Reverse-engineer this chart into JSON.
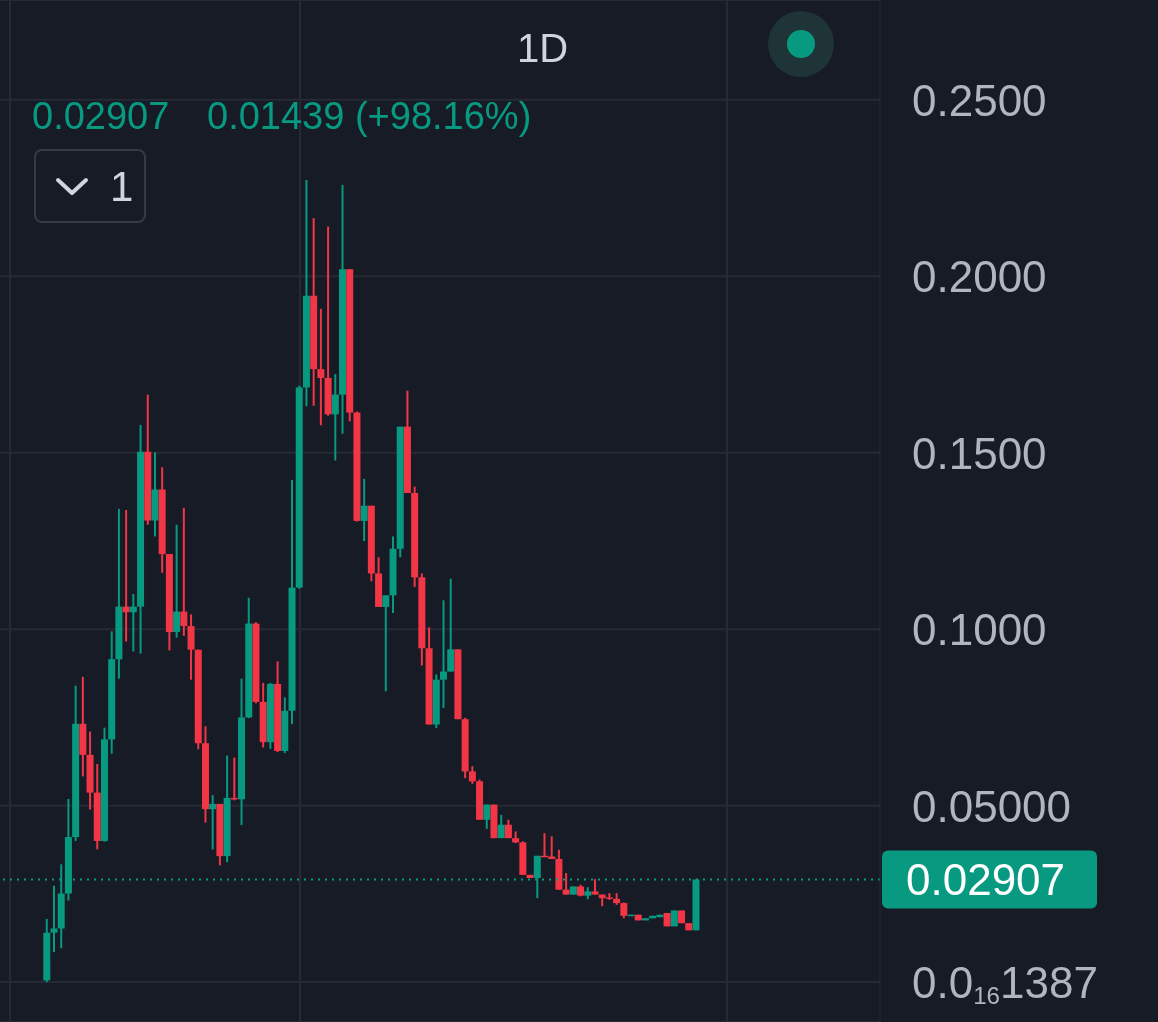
{
  "chart_data": {
    "type": "candlestick",
    "title": "1D",
    "annotations": [
      "0.02907",
      "0.01439 (+98.16%)",
      "1"
    ],
    "categories": [
      null,
      null,
      null,
      null,
      null,
      null,
      null,
      null,
      null,
      null,
      null,
      null,
      null,
      null,
      null,
      null,
      null,
      null,
      null,
      null,
      null,
      null,
      null,
      null,
      null,
      null,
      null,
      null,
      null,
      null,
      null,
      null,
      null,
      null,
      null,
      null,
      null,
      null,
      null,
      null,
      null,
      null,
      null,
      null,
      null,
      null,
      null,
      null,
      null,
      null,
      null,
      null,
      null,
      null,
      null,
      null,
      null,
      null,
      null,
      null,
      null,
      null,
      null,
      null,
      null,
      null,
      null,
      null,
      null,
      null,
      null,
      null,
      null,
      null,
      null,
      null,
      null,
      null,
      null,
      null,
      null,
      null,
      null,
      null,
      null,
      null,
      null,
      null,
      null,
      null,
      null,
      null,
      null,
      null,
      null,
      null,
      null,
      null,
      null,
      null,
      null,
      null,
      null,
      null,
      null,
      null,
      null,
      null,
      null,
      null,
      null,
      null,
      null,
      null,
      null,
      null,
      null,
      null,
      null,
      null,
      null,
      null
    ],
    "ohlc": [
      null,
      null,
      null,
      null,
      null,
      null,
      [
        0.0005,
        0.0179,
        0,
        0.014
      ],
      [
        0.014,
        0.0273,
        0.0085,
        0.0152
      ],
      [
        0.0152,
        0.0334,
        0.0096,
        0.0251
      ],
      [
        0.0251,
        0.0519,
        0.0231,
        0.0411
      ],
      [
        0.0411,
        0.084,
        0.04,
        0.0732
      ],
      [
        0.0732,
        0.0865,
        0.0583,
        0.0644
      ],
      [
        0.0644,
        0.071,
        0.0489,
        0.0537
      ],
      [
        0.0537,
        0.0618,
        0.0376,
        0.04
      ],
      [
        0.04,
        0.0721,
        0.0398,
        0.0688
      ],
      [
        0.0688,
        0.0994,
        0.0647,
        0.0915
      ],
      [
        0.0915,
        0.1341,
        0.086,
        0.1064
      ],
      [
        0.1064,
        0.1338,
        0.0965,
        0.1048
      ],
      [
        0.1048,
        0.11,
        0.0937,
        0.1064
      ],
      [
        0.1064,
        0.1579,
        0.0931,
        0.1503
      ],
      [
        0.1503,
        0.1665,
        0.1296,
        0.1308
      ],
      [
        0.1308,
        0.1501,
        0.1263,
        0.1396
      ],
      [
        0.1396,
        0.1459,
        0.116,
        0.1213
      ],
      [
        0.1213,
        0.1213,
        0.094,
        0.0992
      ],
      [
        0.0992,
        0.1296,
        0.0976,
        0.105
      ],
      [
        0.105,
        0.1344,
        0.0981,
        0.1009
      ],
      [
        0.1009,
        0.1042,
        0.0857,
        0.0942
      ],
      [
        0.0942,
        0.0942,
        0.066,
        0.0677
      ],
      [
        0.0677,
        0.0725,
        0.0452,
        0.049
      ],
      [
        0.049,
        0.053,
        0.0376,
        0.0505
      ],
      [
        0.0505,
        0.0505,
        0.0331,
        0.0357
      ],
      [
        0.0357,
        0.0642,
        0.034,
        0.0522
      ],
      [
        0.0522,
        0.0636,
        0.0515,
        0.0518
      ],
      [
        0.0518,
        0.086,
        0.0445,
        0.075
      ],
      [
        0.075,
        0.1089,
        0.0748,
        0.1016
      ],
      [
        0.1016,
        0.102,
        0.079,
        0.0794
      ],
      [
        0.0794,
        0.0848,
        0.0665,
        0.068
      ],
      [
        0.068,
        0.0848,
        0.0661,
        0.0845
      ],
      [
        0.0845,
        0.0909,
        0.0652,
        0.0655
      ],
      [
        0.0655,
        0.0807,
        0.0649,
        0.0769
      ],
      [
        0.0769,
        0.1423,
        0.0731,
        0.1118
      ],
      [
        0.1118,
        0.169,
        0.1115,
        0.1685
      ],
      [
        0.1685,
        0.2273,
        0.1632,
        0.1945
      ],
      [
        0.1945,
        0.2165,
        0.1633,
        0.1737
      ],
      [
        0.1737,
        0.1908,
        0.1578,
        0.1712
      ],
      [
        0.1712,
        0.2141,
        0.1605,
        0.1609
      ],
      [
        0.1609,
        0.1723,
        0.1478,
        0.1665
      ],
      [
        0.1665,
        0.2259,
        0.1554,
        0.202
      ],
      [
        0.202,
        0.202,
        0.1589,
        0.1614
      ],
      [
        0.1614,
        0.1617,
        0.1305,
        0.1307
      ],
      [
        0.1307,
        0.1426,
        0.125,
        0.135
      ],
      [
        0.135,
        0.135,
        0.1136,
        0.1158
      ],
      [
        0.1158,
        0.1204,
        0.1063,
        0.1063
      ],
      [
        0.1063,
        0.1096,
        0.0824,
        0.1096
      ],
      [
        0.1096,
        0.1263,
        0.1046,
        0.1228
      ],
      [
        0.1228,
        0.1574,
        0.1204,
        0.1574
      ],
      [
        0.1574,
        0.1676,
        0.1386,
        0.1386
      ],
      [
        0.1386,
        0.1404,
        0.112,
        0.1147
      ],
      [
        0.1147,
        0.1158,
        0.0897,
        0.0946
      ],
      [
        0.0946,
        0.1005,
        0.073,
        0.073
      ],
      [
        0.073,
        0.0872,
        0.072,
        0.0857
      ],
      [
        0.0857,
        0.1082,
        0.0777,
        0.088
      ],
      [
        0.088,
        0.1143,
        0.088,
        0.0943
      ],
      [
        0.0943,
        0.0943,
        0.0745,
        0.0745
      ],
      [
        0.0745,
        0.0749,
        0.0578,
        0.0597
      ],
      [
        0.0597,
        0.0612,
        0.0562,
        0.0569
      ],
      [
        0.0569,
        0.0574,
        0.046,
        0.046
      ],
      [
        0.046,
        0.0503,
        0.0434,
        0.0503
      ],
      [
        0.0503,
        0.0503,
        0.0408,
        0.0408
      ],
      [
        0.0408,
        0.0474,
        0.0408,
        0.0446
      ],
      [
        0.0446,
        0.046,
        0.0408,
        0.0408
      ],
      [
        0.0408,
        0.0427,
        0.0394,
        0.0396
      ],
      [
        0.0396,
        0.0399,
        0.0304,
        0.0304
      ],
      [
        0.0304,
        0.0304,
        0.0295,
        0.0295
      ],
      [
        0.0295,
        0.0358,
        0.0238,
        0.0358
      ],
      [
        0.0358,
        0.0422,
        0.0356,
        0.0356
      ],
      [
        0.0356,
        0.0413,
        0.0349,
        0.0349
      ],
      [
        0.0349,
        0.0375,
        0.0262,
        0.0262
      ],
      [
        0.0262,
        0.0309,
        0.0248,
        0.0248
      ],
      [
        0.0248,
        0.0271,
        0.0248,
        0.0271
      ],
      [
        0.0271,
        0.0276,
        0.0243,
        0.0245
      ],
      [
        0.0245,
        0.0269,
        0.0235,
        0.0257
      ],
      [
        0.0257,
        0.0292,
        0.0248,
        0.0248
      ],
      [
        0.0248,
        0.0248,
        0.0215,
        0.0238
      ],
      [
        0.024,
        0.0252,
        0.0233,
        0.0236
      ],
      [
        0.0236,
        0.0252,
        0.0219,
        0.0224
      ],
      [
        0.0224,
        0.0226,
        0.0181,
        0.0188
      ],
      [
        0.0188,
        0.0191,
        0.0188,
        0.0191
      ],
      [
        0.0191,
        0.0191,
        0.0175,
        0.0175
      ],
      [
        0.0175,
        0.0181,
        0.0175,
        0.0181
      ],
      [
        0.0181,
        0.0188,
        0.0181,
        0.0188
      ],
      [
        0.0184,
        0.0191,
        0.0184,
        0.0191
      ],
      [
        0.0196,
        0.0196,
        0.0158,
        0.0158
      ],
      [
        0.0158,
        0.0203,
        0.0158,
        0.0203
      ],
      [
        0.0203,
        0.0203,
        0.0167,
        0.0167
      ],
      [
        0.0167,
        0.0167,
        0.01468,
        0.01468
      ],
      [
        0.01468,
        0.02907,
        0.01468,
        0.02907
      ],
      null,
      null,
      null,
      null,
      null,
      null,
      null,
      null,
      null,
      null,
      null,
      null,
      null,
      null,
      null,
      null,
      null,
      null,
      null,
      null,
      null,
      null,
      null,
      null,
      null
    ],
    "colors": [
      null,
      null,
      null,
      null,
      null,
      null,
      "#089981",
      "#089981",
      "#089981",
      "#089981",
      "#089981",
      "#f23645",
      "#f23645",
      "#f23645",
      "#089981",
      "#089981",
      "#089981",
      "#f23645",
      "#089981",
      "#089981",
      "#f23645",
      "#089981",
      "#f23645",
      "#f23645",
      "#089981",
      "#f23645",
      "#f23645",
      "#f23645",
      "#f23645",
      "#089981",
      "#f23645",
      "#089981",
      "#f23645",
      "#089981",
      "#089981",
      "#f23645",
      "#f23645",
      "#089981",
      "#f23645",
      "#089981",
      "#089981",
      "#089981",
      "#089981",
      "#f23645",
      "#f23645",
      "#f23645",
      "#089981",
      "#089981",
      "#f23645",
      "#f23645",
      "#089981",
      "#f23645",
      "#f23645",
      "#089981",
      "#089981",
      "#089981",
      "#f23645",
      "#f23645",
      "#f23645",
      "#f23645",
      "#089981",
      "#089981",
      "#089981",
      "#f23645",
      "#f23645",
      "#f23645",
      "#f23645",
      "#089981",
      "#f23645",
      "#089981",
      "#f23645",
      "#f23645",
      "#f23645",
      "#f23645",
      "#089981",
      "#f23645",
      "#f23645",
      "#f23645",
      "#f23645",
      "#089981",
      "#f23645",
      "#089981",
      "#f23645",
      "#f23645",
      "#f23645",
      "#f23645",
      "#f23645",
      "#089981",
      "#f23645",
      "#089981",
      "#089981",
      "#089981",
      "#f23645",
      "#089981",
      "#f23645",
      "#f23645",
      "#089981",
      null,
      null,
      null,
      null,
      null,
      null,
      null,
      null,
      null,
      null,
      null,
      null,
      null,
      null,
      null,
      null,
      null,
      null,
      null,
      null,
      null,
      null,
      null,
      null,
      null
    ],
    "ylim": [
      -0.0113,
      0.2783
    ],
    "yticks": [
      {
        "value": 1.387e-17,
        "label": "0.0$_{16}$1387"
      },
      {
        "value": 0.05,
        "label": "0.05000"
      },
      {
        "value": 0.1,
        "label": "0.1000"
      },
      {
        "value": 0.15,
        "label": "0.1500"
      },
      {
        "value": 0.2,
        "label": "0.2000"
      },
      {
        "value": 0.25,
        "label": "0.2500"
      }
    ],
    "grid": true,
    "tick_labels": "y",
    "ref_lines": [
      {
        "axis": "y",
        "value": 0.02907,
        "label": "0.02907",
        "color": "#089981",
        "line_style": "dotted"
      }
    ]
  }
}
